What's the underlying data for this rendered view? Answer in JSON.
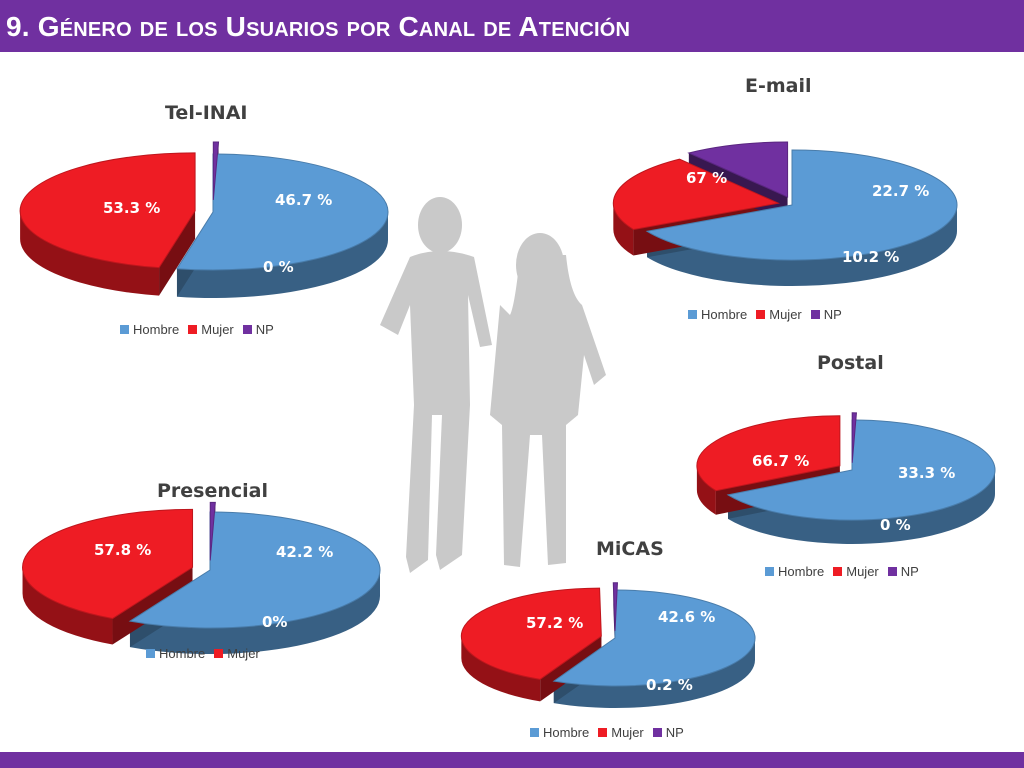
{
  "page": {
    "title": "9. Género de los Usuarios por Canal de Atención"
  },
  "legend_labels": {
    "hombre": "Hombre",
    "mujer": "Mujer",
    "np": "NP"
  },
  "colors": {
    "hombre": "#5b9bd5",
    "mujer": "#ee1c24",
    "np": "#7030a0",
    "accent": "#7030a0"
  },
  "chart_data": [
    {
      "id": "tel-inai",
      "type": "pie",
      "title": "Tel-INAI",
      "slices": [
        {
          "name": "Hombre",
          "value": 53.3,
          "label": "53.3 %"
        },
        {
          "name": "Mujer",
          "value": 46.7,
          "label": "46.7 %"
        },
        {
          "name": "NP",
          "value": 0,
          "label": "0 %"
        }
      ],
      "legend": [
        "Hombre",
        "Mujer",
        "NP"
      ]
    },
    {
      "id": "email",
      "type": "pie",
      "title": "E-mail",
      "slices": [
        {
          "name": "Hombre",
          "value": 67,
          "label": "67 %"
        },
        {
          "name": "Mujer",
          "value": 22.7,
          "label": "22.7 %"
        },
        {
          "name": "NP",
          "value": 10.2,
          "label": "10.2 %"
        }
      ],
      "legend": [
        "Hombre",
        "Mujer",
        "NP"
      ]
    },
    {
      "id": "postal",
      "type": "pie",
      "title": "Postal",
      "slices": [
        {
          "name": "Hombre",
          "value": 66.7,
          "label": "66.7 %"
        },
        {
          "name": "Mujer",
          "value": 33.3,
          "label": "33.3 %"
        },
        {
          "name": "NP",
          "value": 0,
          "label": "0 %"
        }
      ],
      "legend": [
        "Hombre",
        "Mujer",
        "NP"
      ]
    },
    {
      "id": "presencial",
      "type": "pie",
      "title": "Presencial",
      "slices": [
        {
          "name": "Hombre",
          "value": 57.8,
          "label": "57.8 %"
        },
        {
          "name": "Mujer",
          "value": 42.2,
          "label": "42.2 %"
        },
        {
          "name": "NP",
          "value": 0,
          "label": "0%"
        }
      ],
      "legend": [
        "Hombre",
        "Mujer"
      ]
    },
    {
      "id": "micas",
      "type": "pie",
      "title": "MiCAS",
      "slices": [
        {
          "name": "Hombre",
          "value": 57.2,
          "label": "57.2 %"
        },
        {
          "name": "Mujer",
          "value": 42.6,
          "label": "42.6 %"
        },
        {
          "name": "NP",
          "value": 0.2,
          "label": "0.2 %"
        }
      ],
      "legend": [
        "Hombre",
        "Mujer",
        "NP"
      ]
    }
  ]
}
